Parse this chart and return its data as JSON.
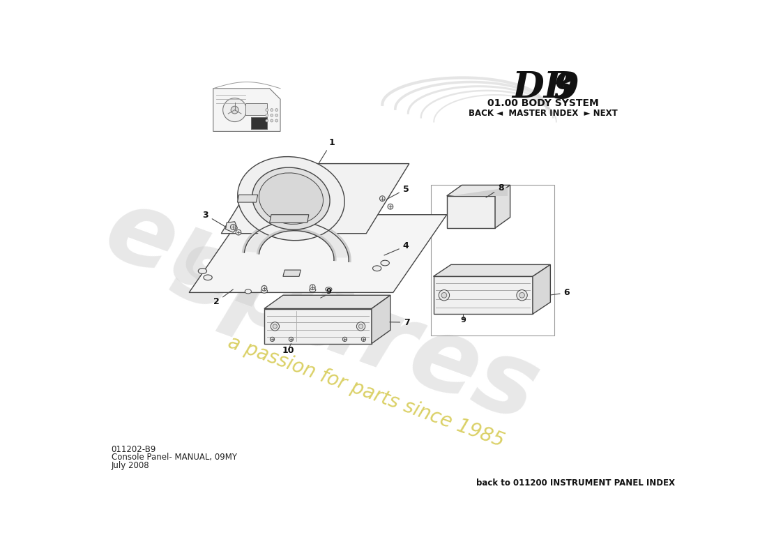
{
  "bg_color": "#ffffff",
  "title_db9": "DB 9",
  "subtitle": "01.00 BODY SYSTEM",
  "nav_text": "BACK ◄  MASTER INDEX  ► NEXT",
  "bottom_left_code": "011202-B9",
  "bottom_left_line1": "Console Panel- MANUAL, 09MY",
  "bottom_left_line2": "July 2008",
  "bottom_right": "back to 011200 INSTRUMENT PANEL INDEX",
  "watermark_euro": "euro",
  "watermark_spares": "spares",
  "watermark_sub": "a passion for parts since 1985",
  "line_color": "#444444",
  "line_color_light": "#888888",
  "fig_width": 11.0,
  "fig_height": 8.0,
  "dpi": 100
}
